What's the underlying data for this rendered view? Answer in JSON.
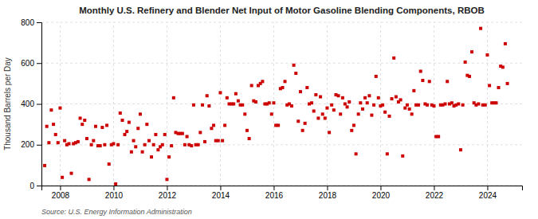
{
  "chart_data": {
    "type": "scatter",
    "title": "Monthly U.S. Refinery and Blender Net Input of Motor Gasoline Blending Components, RBOB",
    "y_label": "Thousand Barrels per Day",
    "annotations": [
      "Source: U.S. Energy Information Administration"
    ],
    "color": "#cc0000",
    "marker": "square",
    "grid": true,
    "xlim": [
      2007.3,
      2025.3
    ],
    "xticks": [
      2008,
      2010,
      2012,
      2014,
      2016,
      2018,
      2020,
      2022,
      2024
    ],
    "ylim": [
      0,
      800
    ],
    "yticks": [
      0,
      200,
      400,
      600,
      800
    ],
    "x": [
      2007.42,
      2007.5,
      2007.58,
      2007.67,
      2007.75,
      2007.83,
      2007.92,
      2008.0,
      2008.08,
      2008.17,
      2008.25,
      2008.33,
      2008.42,
      2008.5,
      2008.58,
      2008.67,
      2008.75,
      2008.83,
      2008.92,
      2009.0,
      2009.08,
      2009.17,
      2009.25,
      2009.33,
      2009.42,
      2009.5,
      2009.58,
      2009.67,
      2009.75,
      2009.83,
      2009.92,
      2010.0,
      2010.08,
      2010.17,
      2010.25,
      2010.33,
      2010.42,
      2010.5,
      2010.58,
      2010.67,
      2010.75,
      2010.83,
      2010.92,
      2011.0,
      2011.08,
      2011.17,
      2011.25,
      2011.33,
      2011.42,
      2011.5,
      2011.58,
      2011.67,
      2011.75,
      2011.83,
      2011.92,
      2012.0,
      2012.08,
      2012.17,
      2012.25,
      2012.33,
      2012.42,
      2012.5,
      2012.58,
      2012.67,
      2012.75,
      2012.83,
      2012.92,
      2013.0,
      2013.08,
      2013.17,
      2013.25,
      2013.33,
      2013.42,
      2013.5,
      2013.58,
      2013.67,
      2013.75,
      2013.83,
      2013.92,
      2014.0,
      2014.08,
      2014.17,
      2014.25,
      2014.33,
      2014.42,
      2014.5,
      2014.58,
      2014.67,
      2014.75,
      2014.83,
      2014.92,
      2015.0,
      2015.08,
      2015.17,
      2015.25,
      2015.33,
      2015.42,
      2015.5,
      2015.58,
      2015.67,
      2015.75,
      2015.83,
      2015.92,
      2016.0,
      2016.08,
      2016.17,
      2016.25,
      2016.33,
      2016.42,
      2016.5,
      2016.58,
      2016.67,
      2016.75,
      2016.83,
      2016.92,
      2017.0,
      2017.08,
      2017.17,
      2017.25,
      2017.33,
      2017.42,
      2017.5,
      2017.58,
      2017.67,
      2017.75,
      2017.83,
      2017.92,
      2018.0,
      2018.08,
      2018.17,
      2018.25,
      2018.33,
      2018.42,
      2018.5,
      2018.58,
      2018.67,
      2018.75,
      2018.83,
      2018.92,
      2019.0,
      2019.08,
      2019.17,
      2019.25,
      2019.33,
      2019.42,
      2019.5,
      2019.58,
      2019.67,
      2019.75,
      2019.83,
      2019.92,
      2020.0,
      2020.08,
      2020.17,
      2020.25,
      2020.33,
      2020.42,
      2020.5,
      2020.58,
      2020.67,
      2020.75,
      2020.83,
      2020.92,
      2021.0,
      2021.08,
      2021.17,
      2021.25,
      2021.33,
      2021.42,
      2021.5,
      2021.58,
      2021.67,
      2021.75,
      2021.83,
      2021.92,
      2022.0,
      2022.08,
      2022.17,
      2022.25,
      2022.33,
      2022.42,
      2022.5,
      2022.58,
      2022.67,
      2022.75,
      2022.83,
      2022.92,
      2023.0,
      2023.08,
      2023.17,
      2023.25,
      2023.33,
      2023.42,
      2023.5,
      2023.58,
      2023.67,
      2023.75,
      2023.83,
      2023.92,
      2024.0,
      2024.08,
      2024.17,
      2024.25,
      2024.33,
      2024.42,
      2024.5,
      2024.58,
      2024.67,
      2024.75
    ],
    "values": [
      98,
      290,
      210,
      370,
      300,
      250,
      210,
      380,
      40,
      220,
      200,
      205,
      60,
      205,
      210,
      215,
      330,
      300,
      320,
      230,
      30,
      200,
      220,
      290,
      195,
      195,
      285,
      200,
      295,
      105,
      200,
      205,
      8,
      200,
      355,
      320,
      250,
      265,
      310,
      165,
      220,
      190,
      280,
      350,
      165,
      200,
      300,
      220,
      140,
      200,
      250,
      175,
      190,
      200,
      250,
      30,
      140,
      195,
      430,
      260,
      255,
      255,
      255,
      200,
      240,
      200,
      195,
      395,
      200,
      200,
      260,
      395,
      215,
      440,
      390,
      280,
      295,
      220,
      220,
      455,
      220,
      295,
      430,
      400,
      400,
      400,
      450,
      415,
      395,
      395,
      350,
      270,
      230,
      490,
      415,
      410,
      490,
      500,
      510,
      400,
      400,
      405,
      350,
      405,
      295,
      295,
      475,
      480,
      510,
      395,
      400,
      390,
      590,
      550,
      315,
      460,
      270,
      305,
      480,
      400,
      405,
      365,
      445,
      330,
      435,
      350,
      330,
      380,
      260,
      395,
      370,
      445,
      440,
      350,
      430,
      400,
      385,
      410,
      270,
      295,
      155,
      350,
      405,
      375,
      430,
      405,
      440,
      345,
      395,
      535,
      430,
      390,
      395,
      360,
      155,
      340,
      425,
      625,
      435,
      410,
      420,
      145,
      380,
      395,
      375,
      350,
      465,
      395,
      395,
      560,
      515,
      400,
      395,
      510,
      395,
      390,
      240,
      240,
      395,
      395,
      400,
      510,
      400,
      405,
      390,
      395,
      400,
      175,
      395,
      605,
      540,
      535,
      655,
      405,
      395,
      400,
      770,
      395,
      395,
      640,
      490,
      405,
      405,
      405,
      480,
      585,
      580,
      695,
      500
    ]
  }
}
